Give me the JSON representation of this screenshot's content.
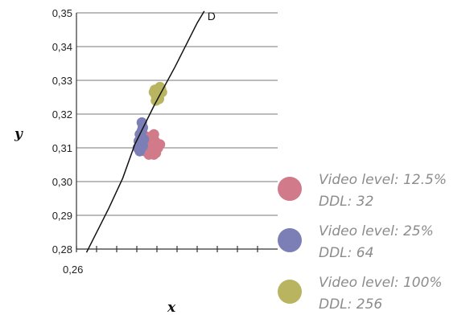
{
  "chart_data": {
    "type": "scatter",
    "xlabel": "x",
    "ylabel": "y",
    "xlim": [
      0.26,
      0.36
    ],
    "ylim": [
      0.28,
      0.35
    ],
    "x_tick_labels": [
      {
        "value": 0.26,
        "label": "0,26"
      }
    ],
    "x_minor_ticks": [
      0.26,
      0.27,
      0.28,
      0.29,
      0.3,
      0.31,
      0.32,
      0.33,
      0.34,
      0.35
    ],
    "y_ticks": [
      {
        "value": 0.35,
        "label": "0,35"
      },
      {
        "value": 0.34,
        "label": "0,34"
      },
      {
        "value": 0.33,
        "label": "0,33"
      },
      {
        "value": 0.32,
        "label": "0,32"
      },
      {
        "value": 0.31,
        "label": "0,31"
      },
      {
        "value": 0.3,
        "label": "0,30"
      },
      {
        "value": 0.29,
        "label": "0,29"
      },
      {
        "value": 0.28,
        "label": "0,28"
      }
    ],
    "grid": "horizontal",
    "line": {
      "end_label": "D",
      "points": [
        [
          0.265,
          0.279
        ],
        [
          0.276,
          0.292
        ],
        [
          0.283,
          0.301
        ],
        [
          0.289,
          0.311
        ],
        [
          0.299,
          0.323
        ],
        [
          0.309,
          0.334
        ],
        [
          0.32,
          0.347
        ],
        [
          0.3235,
          0.3505
        ]
      ]
    },
    "series": [
      {
        "name": "Video level: 12.5%",
        "name2": "DDL: 32",
        "color": "#d17a8a",
        "points": [
          [
            0.294,
            0.3135
          ],
          [
            0.295,
            0.3125
          ],
          [
            0.296,
            0.3115
          ],
          [
            0.297,
            0.3105
          ],
          [
            0.298,
            0.3095
          ],
          [
            0.2995,
            0.3085
          ],
          [
            0.3005,
            0.31
          ],
          [
            0.2975,
            0.3135
          ],
          [
            0.299,
            0.312
          ],
          [
            0.3015,
            0.311
          ],
          [
            0.294,
            0.309
          ],
          [
            0.296,
            0.308
          ],
          [
            0.2985,
            0.308
          ],
          [
            0.295,
            0.31
          ],
          [
            0.2965,
            0.313
          ],
          [
            0.2985,
            0.314
          ]
        ]
      },
      {
        "name": "Video level: 25%",
        "name2": "DDL: 64",
        "color": "#7b7fb6",
        "points": [
          [
            0.2925,
            0.3175
          ],
          [
            0.293,
            0.316
          ],
          [
            0.2915,
            0.314
          ],
          [
            0.291,
            0.312
          ],
          [
            0.2905,
            0.31
          ],
          [
            0.2915,
            0.309
          ],
          [
            0.293,
            0.3105
          ],
          [
            0.2935,
            0.3125
          ],
          [
            0.2925,
            0.315
          ]
        ]
      },
      {
        "name": "Video level: 100%",
        "name2": "DDL: 256",
        "color": "#b8b460",
        "points": [
          [
            0.2985,
            0.3265
          ],
          [
            0.2995,
            0.3255
          ],
          [
            0.3005,
            0.327
          ],
          [
            0.3015,
            0.328
          ],
          [
            0.3025,
            0.3265
          ],
          [
            0.301,
            0.3245
          ],
          [
            0.2995,
            0.324
          ],
          [
            0.302,
            0.3275
          ],
          [
            0.299,
            0.3272
          ]
        ]
      }
    ],
    "legend_position": "right"
  }
}
